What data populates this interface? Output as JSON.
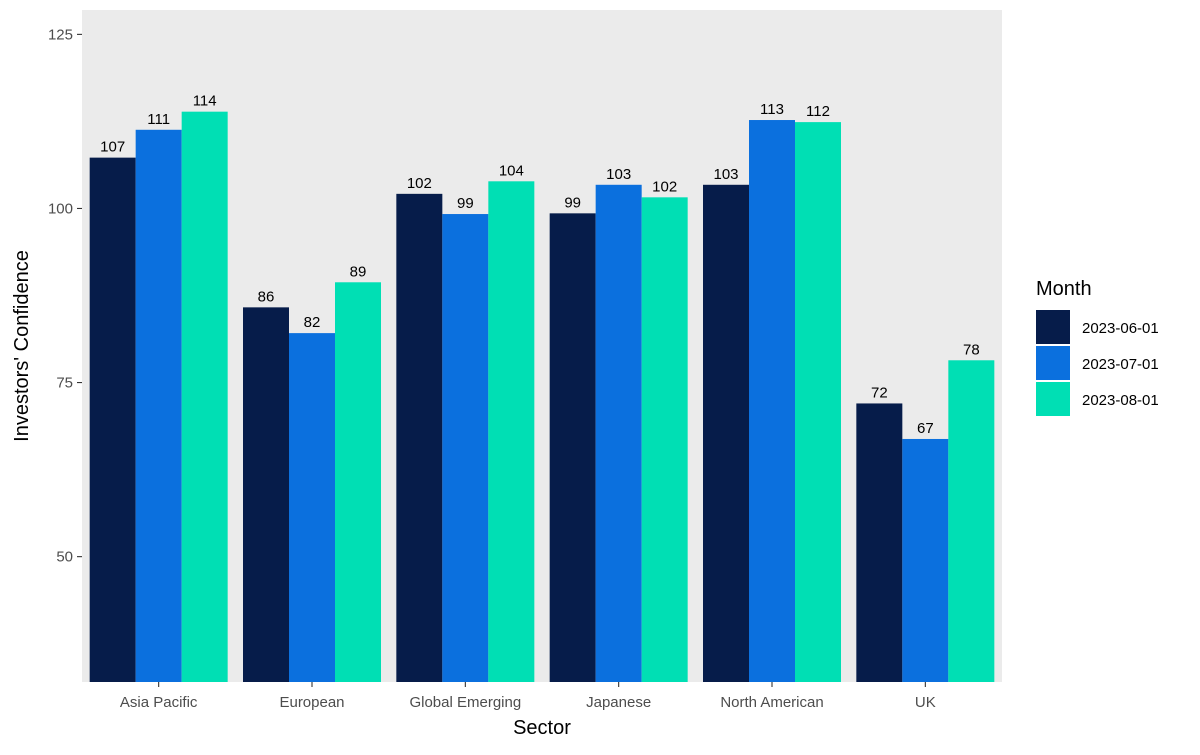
{
  "chart_data": {
    "type": "bar",
    "xlabel": "Sector",
    "ylabel": "Investors' Confidence",
    "categories": [
      "Asia Pacific",
      "European",
      "Global Emerging",
      "Japanese",
      "North American",
      "UK"
    ],
    "series": [
      {
        "name": "2023-06-01",
        "color": "#061c4a",
        "values": [
          107.3,
          85.8,
          102.1,
          99.3,
          103.4,
          72.0
        ],
        "labels": [
          "107",
          "86",
          "102",
          "99",
          "103",
          "72"
        ]
      },
      {
        "name": "2023-07-01",
        "color": "#0b70de",
        "values": [
          111.3,
          82.1,
          99.2,
          103.4,
          112.7,
          66.9
        ],
        "labels": [
          "111",
          "82",
          "99",
          "103",
          "113",
          "67"
        ]
      },
      {
        "name": "2023-08-01",
        "color": "#00dfb4",
        "values": [
          113.9,
          89.4,
          103.9,
          101.6,
          112.4,
          78.2
        ],
        "labels": [
          "114",
          "89",
          "104",
          "102",
          "112",
          "78"
        ]
      }
    ],
    "yticks": [
      50,
      75,
      100,
      125
    ],
    "ylim": [
      32,
      128.5
    ],
    "grid": false,
    "legend": {
      "title": "Month",
      "position": "right"
    },
    "panel_background": "#ebebeb"
  }
}
